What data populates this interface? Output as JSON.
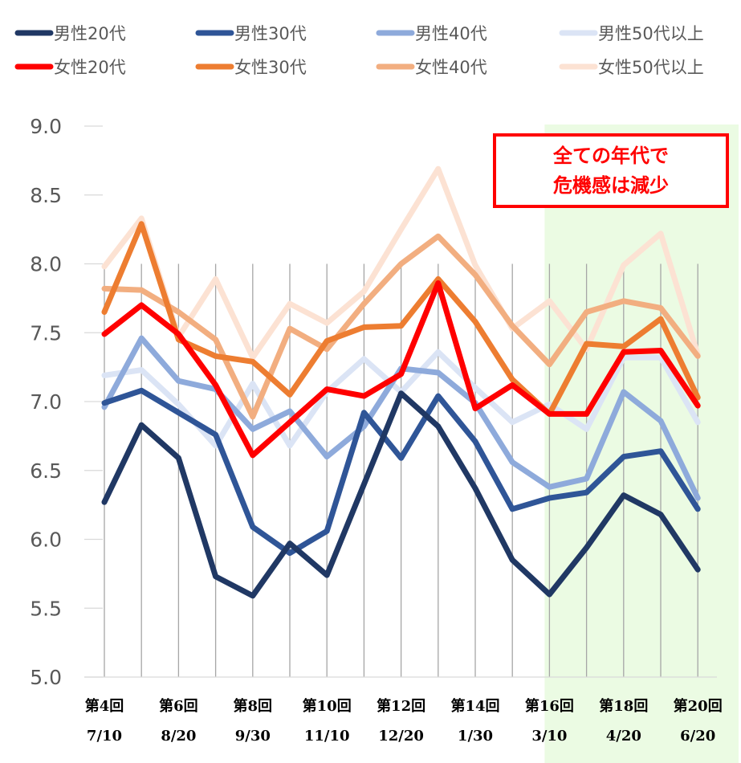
{
  "chart_data": {
    "type": "line",
    "x_top": [
      "第4回",
      "",
      "第6回",
      "",
      "第8回",
      "",
      "第10回",
      "",
      "第12回",
      "",
      "第14回",
      "",
      "第16回",
      "",
      "第18回",
      "",
      "第20回"
    ],
    "x_bottom": [
      "7/10",
      "",
      "8/20",
      "",
      "9/30",
      "",
      "11/10",
      "",
      "12/20",
      "",
      "1/30",
      "",
      "3/10",
      "",
      "4/20",
      "",
      "6/20"
    ],
    "ylim": [
      5.0,
      9.0
    ],
    "yticks": [
      "5.0",
      "5.5",
      "6.0",
      "6.5",
      "7.0",
      "7.5",
      "8.0",
      "8.5",
      "9.0"
    ],
    "grid": "vertical",
    "legend_position": "top",
    "highlight_from_index": 12,
    "highlight_color": "#ebfbe3",
    "annotation": {
      "line1": "全ての年代で",
      "line2": "危機感は減少",
      "color": "#ff0000"
    },
    "series": [
      {
        "name": "男性50代以上",
        "color": "#dbe4f5",
        "values": [
          7.19,
          7.23,
          6.98,
          6.68,
          7.13,
          6.68,
          7.07,
          7.31,
          7.07,
          7.36,
          7.1,
          6.85,
          6.98,
          6.8,
          7.32,
          7.32,
          6.85
        ]
      },
      {
        "name": "女性50代以上",
        "color": "#fce2d3",
        "values": [
          7.98,
          8.33,
          7.47,
          7.89,
          7.32,
          7.71,
          7.57,
          7.8,
          8.25,
          8.69,
          7.99,
          7.53,
          7.73,
          7.38,
          7.99,
          8.22,
          7.34
        ]
      },
      {
        "name": "女性40代",
        "color": "#f2ae80",
        "values": [
          7.82,
          7.81,
          7.65,
          7.45,
          6.89,
          7.53,
          7.38,
          7.71,
          8.0,
          8.2,
          7.92,
          7.55,
          7.27,
          7.65,
          7.73,
          7.68,
          7.33
        ]
      },
      {
        "name": "男性40代",
        "color": "#8eaadb",
        "values": [
          6.96,
          7.46,
          7.15,
          7.09,
          6.8,
          6.93,
          6.6,
          6.82,
          7.24,
          7.21,
          6.99,
          6.56,
          6.38,
          6.44,
          7.07,
          6.86,
          6.3
        ]
      },
      {
        "name": "女性30代",
        "color": "#ed7d31",
        "values": [
          7.65,
          8.29,
          7.45,
          7.33,
          7.29,
          7.05,
          7.44,
          7.54,
          7.55,
          7.89,
          7.58,
          7.16,
          6.91,
          7.42,
          7.4,
          7.6,
          7.03
        ]
      },
      {
        "name": "男性30代",
        "color": "#2f5597",
        "values": [
          6.99,
          7.08,
          6.92,
          6.76,
          6.09,
          5.9,
          6.06,
          6.92,
          6.59,
          7.04,
          6.71,
          6.22,
          6.3,
          6.34,
          6.6,
          6.64,
          6.22
        ]
      },
      {
        "name": "女性20代",
        "color": "#ff0000",
        "values": [
          7.49,
          7.7,
          7.49,
          7.12,
          6.61,
          6.85,
          7.09,
          7.04,
          7.2,
          7.86,
          6.95,
          7.12,
          6.91,
          6.91,
          7.36,
          7.37,
          6.97
        ]
      },
      {
        "name": "男性20代",
        "color": "#203864",
        "values": [
          6.27,
          6.83,
          6.59,
          5.73,
          5.59,
          5.97,
          5.74,
          6.4,
          7.06,
          6.82,
          6.37,
          5.85,
          5.6,
          5.94,
          6.32,
          6.18,
          5.78
        ]
      }
    ],
    "legend": [
      {
        "name": "男性20代",
        "color": "#203864"
      },
      {
        "name": "男性30代",
        "color": "#2f5597"
      },
      {
        "name": "男性40代",
        "color": "#8eaadb"
      },
      {
        "name": "男性50代以上",
        "color": "#dbe4f5"
      },
      {
        "name": "女性20代",
        "color": "#ff0000"
      },
      {
        "name": "女性30代",
        "color": "#ed7d31"
      },
      {
        "name": "女性40代",
        "color": "#f2ae80"
      },
      {
        "name": "女性50代以上",
        "color": "#fce2d3"
      }
    ]
  }
}
